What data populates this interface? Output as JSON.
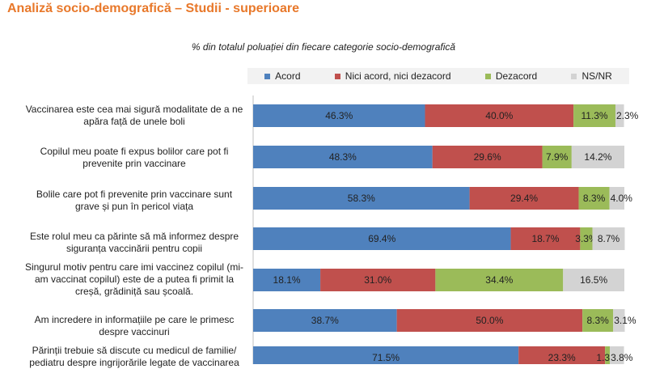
{
  "header": {
    "title": "Analiză socio-demografică – Studii - superioare",
    "subtitle": "% din totalul poluației din fiecare categorie socio-demografică"
  },
  "chart_data": {
    "type": "bar",
    "stacked": true,
    "orientation": "horizontal",
    "legend_position": "top",
    "categories": [
      "Vaccinarea este cea mai sigură modalitate de a ne apăra față de unele boli",
      "Copilul meu poate fi  expus  bolilor care pot fi prevenite prin vaccinare",
      "Bolile care pot fi prevenite prin vaccinare sunt grave și pun în pericol viața",
      "Este rolul meu ca părinte să mă informez despre siguranța vaccinării pentru copii",
      "Singurul motiv pentru care imi vaccinez copilul (mi-am vaccinat copilul) este  de a putea fi primit  la creșă, grădiniță sau școală.",
      "Am incredere in informațiile pe care le primesc despre vaccinuri",
      "Părinții trebuie să discute cu medicul de familie/ pediatru despre ingrijorările legate de vaccinarea"
    ],
    "series": [
      {
        "name": "Acord",
        "color": "#4f81bd",
        "values": [
          46.3,
          48.3,
          58.3,
          69.4,
          18.1,
          38.7,
          71.5
        ],
        "labels": [
          "46.3%",
          "48.3%",
          "58.3%",
          "69.4%",
          "18.1%",
          "38.7%",
          "71.5%"
        ]
      },
      {
        "name": "Nici acord, nici dezacord",
        "color": "#c0504d",
        "values": [
          40.0,
          29.6,
          29.4,
          18.7,
          31.0,
          50.0,
          23.3
        ],
        "labels": [
          "40.0%",
          "29.6%",
          "29.4%",
          "18.7%",
          "31.0%",
          "50.0%",
          "23.3%"
        ]
      },
      {
        "name": "Dezacord",
        "color": "#9bbb59",
        "values": [
          11.3,
          7.9,
          8.3,
          3.3,
          34.4,
          8.3,
          1.3
        ],
        "labels": [
          "11.3%",
          "7.9%",
          "8.3%",
          "3.3%",
          "34.4%",
          "8.3%",
          "1.3%"
        ]
      },
      {
        "name": "NS/NR",
        "color": "#d3d3d3",
        "values": [
          2.3,
          14.2,
          4.0,
          8.7,
          16.5,
          3.1,
          3.8
        ],
        "labels": [
          "2.3%",
          "14.2%",
          "4.0%",
          "8.7%",
          "16.5%",
          "3.1%",
          "3.8%"
        ]
      }
    ],
    "xlim": [
      0,
      100
    ]
  }
}
